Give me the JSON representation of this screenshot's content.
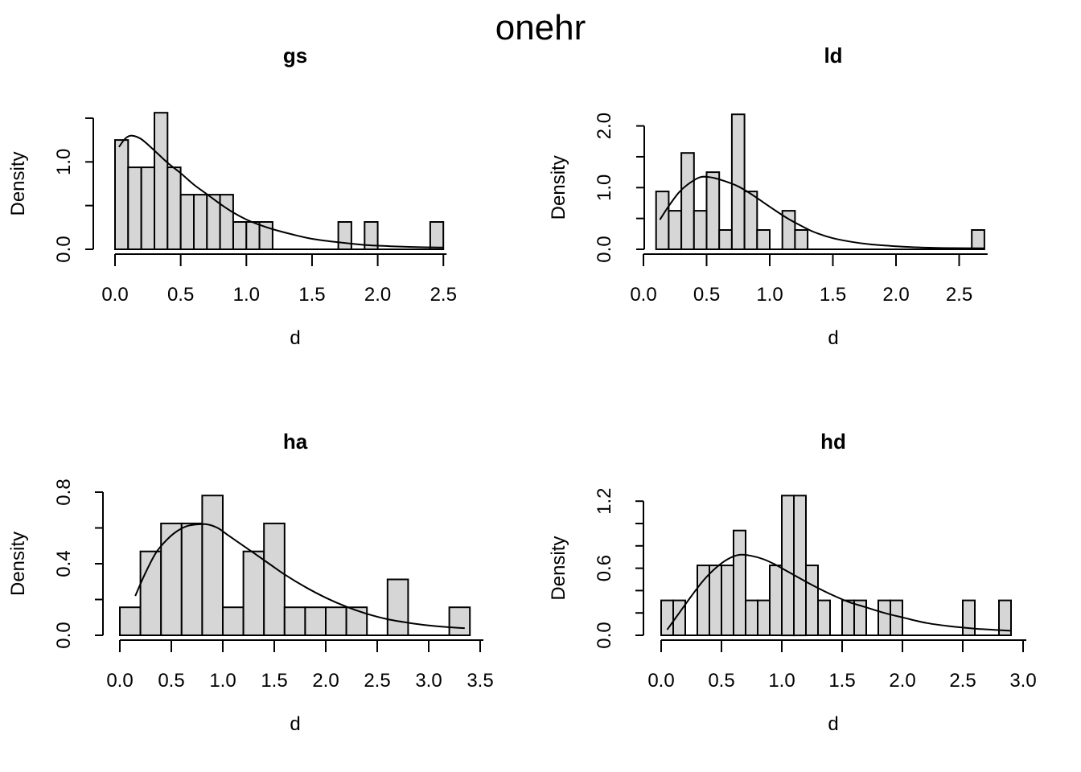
{
  "page_title": "onehr",
  "chart_data": [
    {
      "type": "bar",
      "subtype": "histogram-with-density",
      "title": "gs",
      "xlabel": "d",
      "ylabel": "Density",
      "bin_width": 0.1,
      "xlim": [
        0,
        2.5
      ],
      "ylim": [
        0,
        1.5
      ],
      "grid": "off",
      "bar_fill": "#d6d6d6",
      "line_color": "#000000",
      "bars": {
        "bin_starts": [
          0.0,
          0.1,
          0.2,
          0.3,
          0.4,
          0.5,
          0.6,
          0.7,
          0.8,
          0.9,
          1.0,
          1.1,
          1.7,
          1.9,
          2.4
        ],
        "densities": [
          1.25,
          0.9375,
          0.9375,
          1.5625,
          0.9375,
          0.625,
          0.625,
          0.625,
          0.625,
          0.3125,
          0.3125,
          0.3125,
          0.3125,
          0.3125,
          0.3125
        ]
      },
      "xticks": [
        0,
        0.5,
        1.0,
        1.5,
        2.0,
        2.5
      ],
      "xtick_labels": [
        "0.0",
        "0.5",
        "1.0",
        "1.5",
        "2.0",
        "2.5"
      ],
      "yticks": [
        0,
        0.5,
        1.0,
        1.5
      ],
      "ytick_labels": [
        "0.0",
        "",
        "1.0",
        ""
      ],
      "density_curve": [
        [
          0.03,
          1.17
        ],
        [
          0.08,
          1.27
        ],
        [
          0.13,
          1.3
        ],
        [
          0.2,
          1.26
        ],
        [
          0.3,
          1.13
        ],
        [
          0.4,
          0.99
        ],
        [
          0.5,
          0.87
        ],
        [
          0.6,
          0.74
        ],
        [
          0.7,
          0.63
        ],
        [
          0.8,
          0.52
        ],
        [
          0.9,
          0.42
        ],
        [
          1.0,
          0.34
        ],
        [
          1.1,
          0.28
        ],
        [
          1.2,
          0.23
        ],
        [
          1.35,
          0.17
        ],
        [
          1.5,
          0.12
        ],
        [
          1.7,
          0.08
        ],
        [
          1.9,
          0.05
        ],
        [
          2.1,
          0.035
        ],
        [
          2.3,
          0.025
        ],
        [
          2.5,
          0.02
        ]
      ]
    },
    {
      "type": "bar",
      "subtype": "histogram-with-density",
      "title": "ld",
      "xlabel": "d",
      "ylabel": "Density",
      "bin_width": 0.1,
      "xlim": [
        0,
        2.7
      ],
      "ylim": [
        0,
        2.0
      ],
      "grid": "off",
      "bar_fill": "#d6d6d6",
      "line_color": "#000000",
      "bars": {
        "bin_starts": [
          0.1,
          0.2,
          0.3,
          0.4,
          0.5,
          0.6,
          0.7,
          0.8,
          0.9,
          1.1,
          1.2,
          2.6
        ],
        "densities": [
          0.9375,
          0.625,
          1.5625,
          0.625,
          1.25,
          0.3125,
          2.1875,
          0.9375,
          0.3125,
          0.625,
          0.3125,
          0.3125
        ]
      },
      "xticks": [
        0,
        0.5,
        1.0,
        1.5,
        2.0,
        2.5
      ],
      "xtick_labels": [
        "0.0",
        "0.5",
        "1.0",
        "1.5",
        "2.0",
        "2.5"
      ],
      "yticks": [
        0,
        0.5,
        1.0,
        1.5,
        2.0
      ],
      "ytick_labels": [
        "0.0",
        "",
        "1.0",
        "",
        "2.0"
      ],
      "density_curve": [
        [
          0.13,
          0.48
        ],
        [
          0.2,
          0.7
        ],
        [
          0.28,
          0.92
        ],
        [
          0.35,
          1.05
        ],
        [
          0.45,
          1.17
        ],
        [
          0.55,
          1.16
        ],
        [
          0.65,
          1.1
        ],
        [
          0.75,
          1.02
        ],
        [
          0.85,
          0.9
        ],
        [
          0.95,
          0.76
        ],
        [
          1.05,
          0.62
        ],
        [
          1.15,
          0.49
        ],
        [
          1.25,
          0.38
        ],
        [
          1.35,
          0.28
        ],
        [
          1.5,
          0.18
        ],
        [
          1.65,
          0.12
        ],
        [
          1.8,
          0.08
        ],
        [
          2.0,
          0.05
        ],
        [
          2.2,
          0.03
        ],
        [
          2.45,
          0.02
        ],
        [
          2.7,
          0.015
        ]
      ]
    },
    {
      "type": "bar",
      "subtype": "histogram-with-density",
      "title": "ha",
      "xlabel": "d",
      "ylabel": "Density",
      "bin_width": 0.2,
      "xlim": [
        0,
        3.5
      ],
      "ylim": [
        0,
        0.8
      ],
      "grid": "off",
      "bar_fill": "#d6d6d6",
      "line_color": "#000000",
      "bars": {
        "bin_starts": [
          0.0,
          0.2,
          0.4,
          0.6,
          0.8,
          1.0,
          1.2,
          1.4,
          1.6,
          1.8,
          2.0,
          2.2,
          2.6,
          3.2
        ],
        "densities": [
          0.15625,
          0.46875,
          0.625,
          0.625,
          0.78125,
          0.15625,
          0.46875,
          0.625,
          0.15625,
          0.15625,
          0.15625,
          0.15625,
          0.3125,
          0.15625
        ]
      },
      "xticks": [
        0,
        0.5,
        1.0,
        1.5,
        2.0,
        2.5,
        3.0,
        3.5
      ],
      "xtick_labels": [
        "0.0",
        "0.5",
        "1.0",
        "1.5",
        "2.0",
        "2.5",
        "3.0",
        "3.5"
      ],
      "yticks": [
        0,
        0.2,
        0.4,
        0.6,
        0.8
      ],
      "ytick_labels": [
        "0.0",
        "",
        "0.4",
        "",
        "0.8"
      ],
      "density_curve": [
        [
          0.15,
          0.22
        ],
        [
          0.25,
          0.35
        ],
        [
          0.35,
          0.46
        ],
        [
          0.45,
          0.53
        ],
        [
          0.55,
          0.58
        ],
        [
          0.65,
          0.61
        ],
        [
          0.75,
          0.62
        ],
        [
          0.85,
          0.62
        ],
        [
          0.95,
          0.6
        ],
        [
          1.05,
          0.56
        ],
        [
          1.15,
          0.52
        ],
        [
          1.3,
          0.46
        ],
        [
          1.45,
          0.4
        ],
        [
          1.6,
          0.34
        ],
        [
          1.8,
          0.27
        ],
        [
          2.0,
          0.21
        ],
        [
          2.2,
          0.16
        ],
        [
          2.4,
          0.12
        ],
        [
          2.6,
          0.09
        ],
        [
          2.8,
          0.07
        ],
        [
          3.0,
          0.055
        ],
        [
          3.2,
          0.045
        ],
        [
          3.35,
          0.04
        ]
      ]
    },
    {
      "type": "bar",
      "subtype": "histogram-with-density",
      "title": "hd",
      "xlabel": "d",
      "ylabel": "Density",
      "bin_width": 0.1,
      "xlim": [
        0,
        3.0
      ],
      "ylim": [
        0,
        1.2
      ],
      "grid": "off",
      "bar_fill": "#d6d6d6",
      "line_color": "#000000",
      "bars": {
        "bin_starts": [
          0.0,
          0.1,
          0.3,
          0.4,
          0.5,
          0.6,
          0.7,
          0.8,
          0.9,
          1.0,
          1.1,
          1.2,
          1.3,
          1.5,
          1.6,
          1.8,
          1.9,
          2.5,
          2.8
        ],
        "densities": [
          0.3125,
          0.3125,
          0.625,
          0.625,
          0.625,
          0.9375,
          0.3125,
          0.3125,
          0.625,
          1.25,
          1.25,
          0.625,
          0.3125,
          0.3125,
          0.3125,
          0.3125,
          0.3125,
          0.3125,
          0.3125
        ]
      },
      "xticks": [
        0,
        0.5,
        1.0,
        1.5,
        2.0,
        2.5,
        3.0
      ],
      "xtick_labels": [
        "0.0",
        "0.5",
        "1.0",
        "1.5",
        "2.0",
        "2.5",
        "3.0"
      ],
      "yticks": [
        0,
        0.2,
        0.4,
        0.6,
        0.8,
        1.0,
        1.2
      ],
      "ytick_labels": [
        "0.0",
        "",
        "",
        "0.6",
        "",
        "",
        "1.2"
      ],
      "density_curve": [
        [
          0.05,
          0.05
        ],
        [
          0.15,
          0.2
        ],
        [
          0.25,
          0.35
        ],
        [
          0.35,
          0.49
        ],
        [
          0.45,
          0.6
        ],
        [
          0.55,
          0.68
        ],
        [
          0.65,
          0.72
        ],
        [
          0.75,
          0.71
        ],
        [
          0.85,
          0.68
        ],
        [
          0.95,
          0.63
        ],
        [
          1.05,
          0.57
        ],
        [
          1.15,
          0.51
        ],
        [
          1.25,
          0.45
        ],
        [
          1.4,
          0.37
        ],
        [
          1.55,
          0.3
        ],
        [
          1.7,
          0.25
        ],
        [
          1.85,
          0.2
        ],
        [
          2.0,
          0.16
        ],
        [
          2.2,
          0.11
        ],
        [
          2.4,
          0.08
        ],
        [
          2.6,
          0.06
        ],
        [
          2.75,
          0.05
        ],
        [
          2.9,
          0.04
        ]
      ]
    }
  ]
}
